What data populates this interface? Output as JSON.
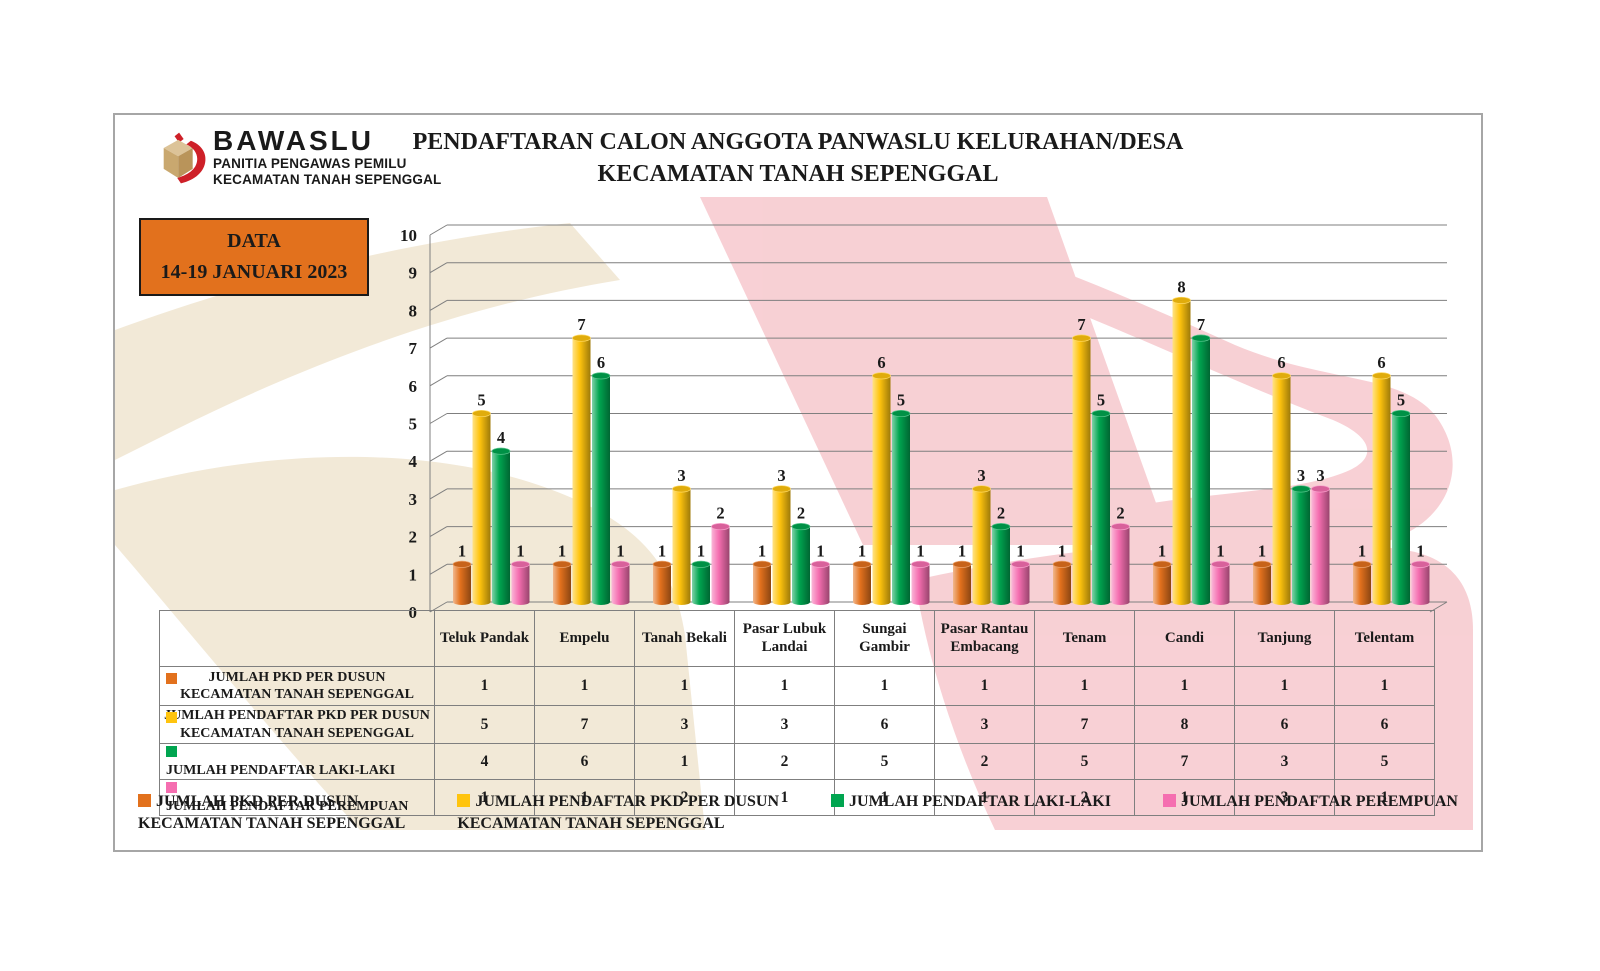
{
  "window": {
    "background": "#ffffff",
    "frame_border": "#a6a6a6"
  },
  "logo": {
    "brand": "BAWASLU",
    "subtitle1": "PANITIA PENGAWAS PEMILU",
    "subtitle2": "KECAMATAN TANAH SEPENGGAL",
    "icon": "ballot-box-with-red-ribbon",
    "icon_colors": {
      "box": "#C9A86F",
      "ribbon": "#CE2028"
    }
  },
  "title": {
    "line1": "PENDAFTARAN CALON ANGGOTA PANWASLU KELURAHAN/DESA",
    "line2": "KECAMATAN TANAH SEPENGGAL"
  },
  "data_badge": {
    "line1": "DATA",
    "line2": "14-19 JANUARI 2023",
    "background": "#E2711D"
  },
  "watermark": {
    "beige": "#F1E7D3",
    "pink": "#F7CBD0"
  },
  "chart_data": {
    "type": "bar",
    "style": "3d-cylinder",
    "title": "PENDAFTARAN CALON ANGGOTA PANWASLU KELURAHAN/DESA KECAMATAN TANAH SEPENGGAL",
    "categories": [
      "Teluk Pandak",
      "Empelu",
      "Tanah Bekali",
      "Pasar Lubuk Landai",
      "Sungai Gambir",
      "Pasar Rantau Embacang",
      "Tenam",
      "Candi",
      "Tanjung",
      "Telentam"
    ],
    "series": [
      {
        "name": "JUMLAH PKD PER DUSUN KECAMATAN TANAH SEPENGGAL",
        "label_lines": [
          "JUMLAH PKD PER DUSUN",
          "KECAMATAN TANAH SEPENGGAL"
        ],
        "color": "#E2711D",
        "values": [
          1,
          1,
          1,
          1,
          1,
          1,
          1,
          1,
          1,
          1
        ]
      },
      {
        "name": "JUMLAH PENDAFTAR PKD PER DUSUN KECAMATAN TANAH SEPENGGAL",
        "label_lines": [
          "JUMLAH PENDAFTAR PKD PER DUSUN",
          "KECAMATAN TANAH SEPENGGAL"
        ],
        "color": "#FFC40E",
        "values": [
          5,
          7,
          3,
          3,
          6,
          3,
          7,
          8,
          6,
          6
        ]
      },
      {
        "name": "JUMLAH PENDAFTAR LAKI-LAKI",
        "label_lines": [
          "JUMLAH PENDAFTAR LAKI-LAKI"
        ],
        "color": "#00A550",
        "values": [
          4,
          6,
          1,
          2,
          5,
          2,
          5,
          7,
          3,
          5
        ]
      },
      {
        "name": "JUMLAH PENDAFTAR PEREMPUAN",
        "label_lines": [
          "JUMLAH PENDAFTAR PEREMPUAN"
        ],
        "color": "#F56EB0",
        "values": [
          1,
          1,
          2,
          1,
          1,
          1,
          2,
          1,
          3,
          1
        ]
      }
    ],
    "xlabel": "",
    "ylabel": "",
    "ylim": [
      0,
      10
    ],
    "yticks": [
      0,
      1,
      2,
      3,
      4,
      5,
      6,
      7,
      8,
      9,
      10
    ],
    "grid": true,
    "gridline_color": "#7f7f7f",
    "data_labels": true,
    "legend_position": "bottom",
    "table_below_chart": true
  }
}
